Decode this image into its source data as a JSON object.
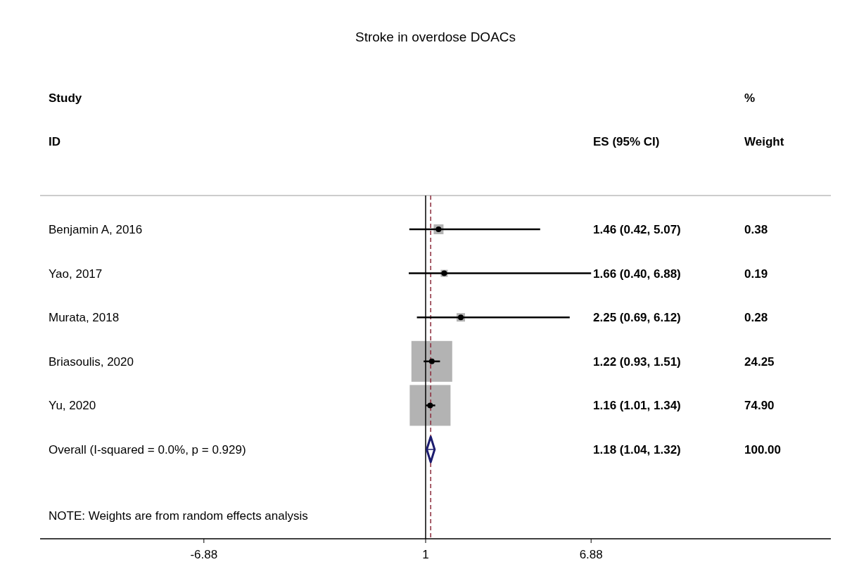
{
  "chart_data": [
    {
      "type": "scatter",
      "orientation": "horizontal",
      "title": "Stroke in overdose DOACs",
      "categories": [
        "Benjamin A, 2016",
        "Yao, 2017",
        "Murata, 2018",
        "Briasoulis, 2020",
        "Yu, 2020",
        "Overall  (I-squared = 0.0%, p = 0.929)"
      ],
      "series": [
        {
          "color": "#000000",
          "marker": "circle",
          "values": [
            1.46,
            1.66,
            2.25,
            1.22,
            1.16,
            null
          ],
          "errors": [
            [
              0.42,
              5.07
            ],
            [
              0.4,
              6.88
            ],
            [
              0.69,
              6.12
            ],
            [
              0.93,
              1.51
            ],
            [
              1.01,
              1.34
            ],
            null
          ]
        },
        {
          "color": "#1c1c6e",
          "marker": "diamond",
          "values": [
            null,
            null,
            null,
            null,
            null,
            1.18
          ],
          "errors": [
            null,
            null,
            null,
            null,
            null,
            [
              1.04,
              1.32
            ]
          ]
        }
      ],
      "xlim": [
        -12.7,
        15.4
      ],
      "xticks": [
        -6.88,
        1,
        6.88
      ],
      "ref_lines": [
        {
          "axis": "x",
          "value": 1,
          "color": "#000000",
          "line_style": "solid"
        },
        {
          "axis": "x",
          "value": 1.18,
          "color": "#8b2a3a",
          "line_style": "dashed"
        }
      ],
      "annotations": [
        "Study",
        "ID",
        "NOTE: Weights are from random effects analysis"
      ],
      "grid": false
    },
    {
      "type": "other",
      "annotations": [
        "%",
        "ES (95% CI)",
        "Weight",
        "1.46 (0.42, 5.07)",
        "0.38",
        "1.66 (0.40, 6.88)",
        "0.19",
        "2.25 (0.69, 6.12)",
        "0.28",
        "1.22 (0.93, 1.51)",
        "24.25",
        "1.16 (1.01, 1.34)",
        "74.90",
        "1.18 (1.04, 1.32)",
        "100.00"
      ]
    }
  ]
}
